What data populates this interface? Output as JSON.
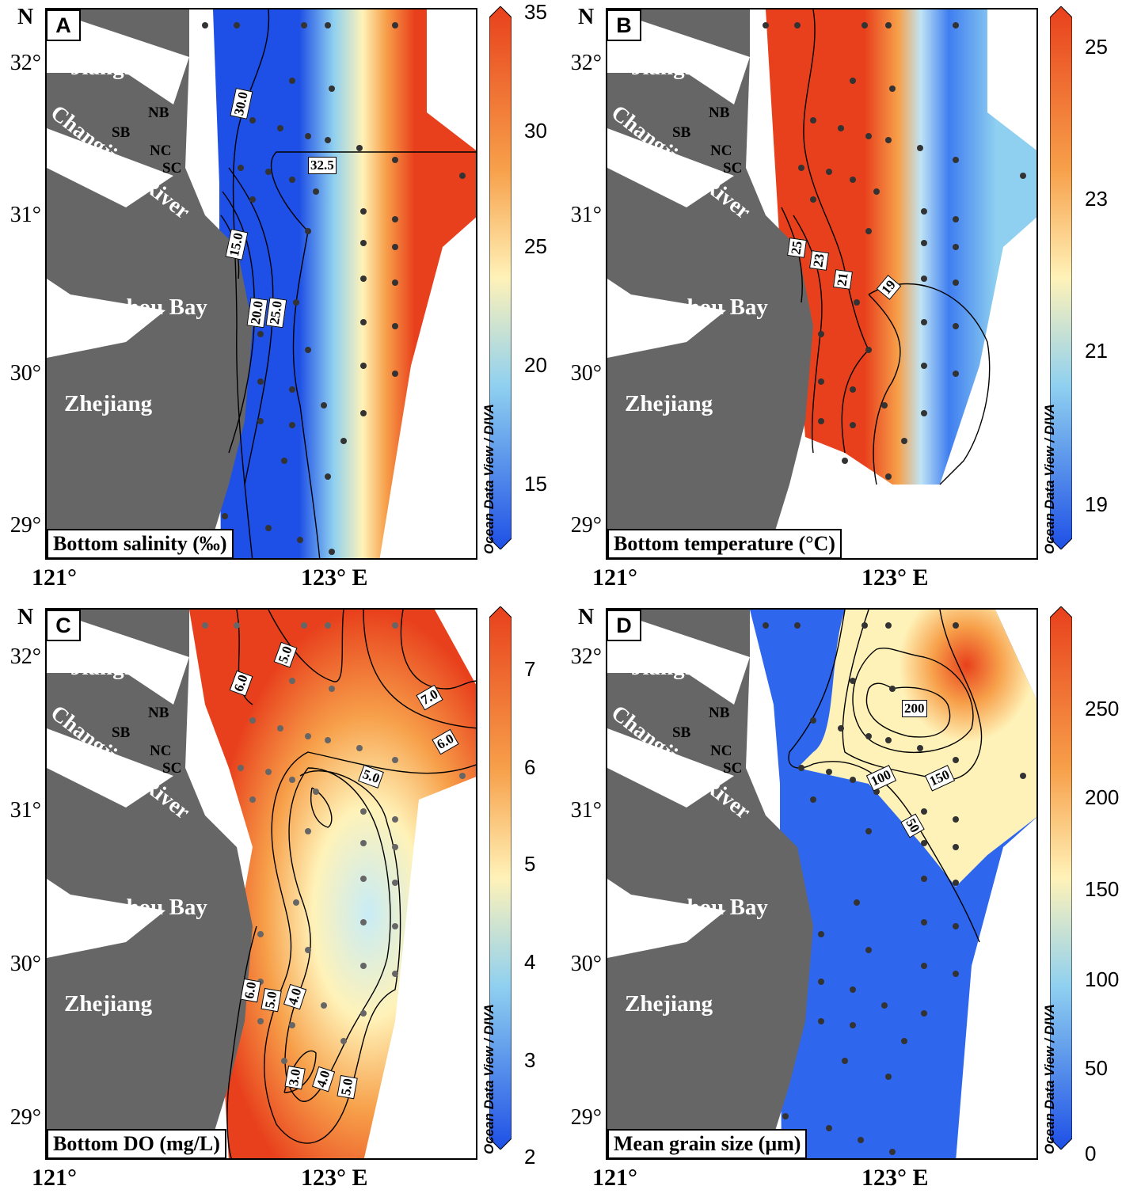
{
  "figure": {
    "axis": {
      "north_label": "N",
      "lat_labels": [
        "32°",
        "31°",
        "30°",
        "29°"
      ],
      "lon_labels": [
        "121°",
        "123° E"
      ]
    },
    "place_names": {
      "jiangsu": "Jiangsu",
      "zhejiang": "Zhejiang",
      "hangzhou_bay": "Hangzhou Bay",
      "river": "Changjiang River",
      "nb": "NB",
      "sb": "SB",
      "nc": "NC",
      "sc": "SC"
    },
    "credit": "Ocean Data View / DIVA",
    "colors": {
      "land": "#666666",
      "low": "#1e4fe6",
      "mid_low": "#8fd0f0",
      "mid": "#fff2b8",
      "mid_high": "#f7a04a",
      "high": "#e8401c",
      "station_dot": "#333333"
    }
  },
  "panels": [
    {
      "letter": "A",
      "caption": "Bottom salinity (‰)",
      "colorbar_ticks": [
        "35",
        "30",
        "25",
        "20",
        "15"
      ],
      "contour_labels": [
        "30.0",
        "32.5",
        "15.0",
        "20.0",
        "25.0"
      ]
    },
    {
      "letter": "B",
      "caption": "Bottom temperature (°C)",
      "colorbar_ticks": [
        "25",
        "23",
        "21",
        "19"
      ],
      "contour_labels": [
        "25",
        "23",
        "21",
        "19"
      ]
    },
    {
      "letter": "C",
      "caption": "Bottom DO (mg/L)",
      "colorbar_ticks": [
        "7",
        "6",
        "5",
        "4",
        "3",
        "2"
      ],
      "contour_labels": [
        "5.0",
        "6.0",
        "7.0",
        "6.0",
        "5.0",
        "6.0",
        "5.0",
        "4.0",
        "3.0",
        "4.0",
        "5.0"
      ]
    },
    {
      "letter": "D",
      "caption": "Mean grain size (μm)",
      "colorbar_ticks": [
        "250",
        "200",
        "150",
        "100",
        "50",
        "0"
      ],
      "contour_labels": [
        "200",
        "100",
        "150",
        "50"
      ]
    }
  ]
}
